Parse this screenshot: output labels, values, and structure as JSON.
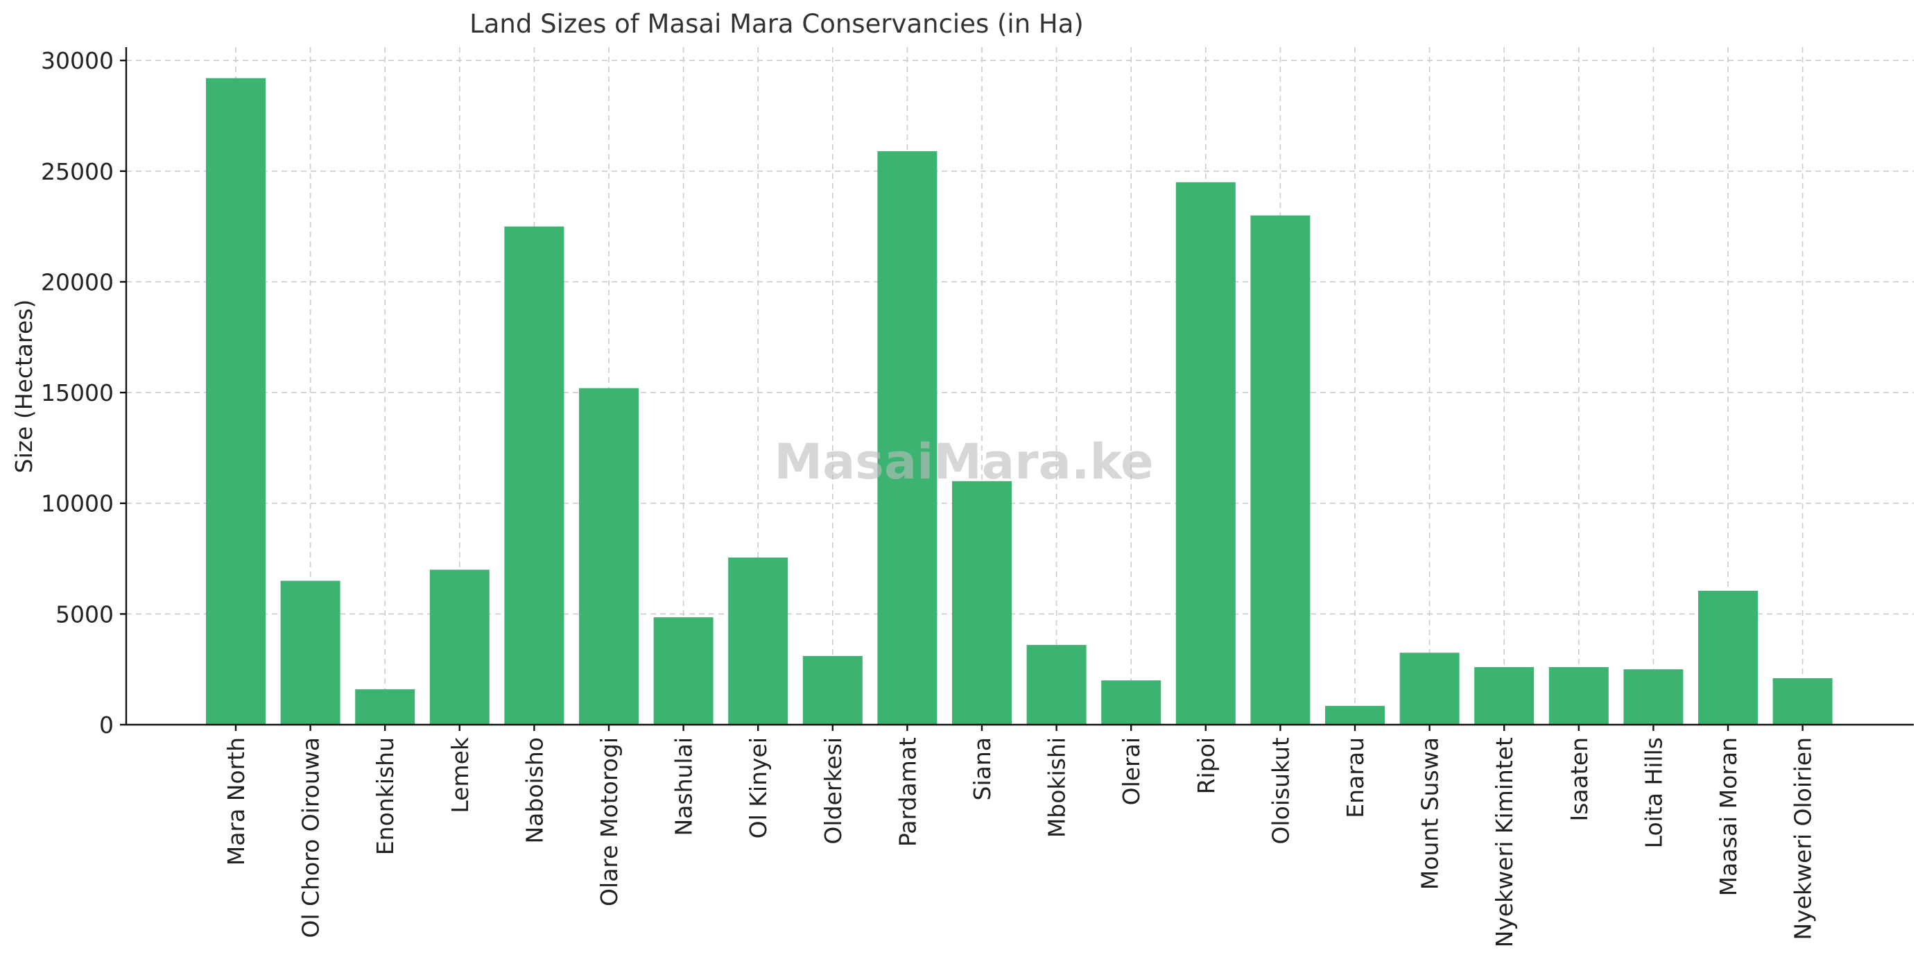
{
  "chart_data": {
    "type": "bar",
    "title": "Land Sizes of Masai Mara Conservancies (in Ha)",
    "xlabel": "",
    "ylabel": "Size (Hectares)",
    "ylim": [
      0,
      30600
    ],
    "yticks": [
      0,
      5000,
      10000,
      15000,
      20000,
      25000,
      30000
    ],
    "grid": true,
    "bar_color": "#3cb371",
    "categories": [
      "Mara North",
      "Ol Choro Oirouwa",
      "Enonkishu",
      "Lemek",
      "Naboisho",
      "Olare Motorogi",
      "Nashulai",
      "Ol Kinyei",
      "Olderkesi",
      "Pardamat",
      "Siana",
      "Mbokishi",
      "Olerai",
      "Ripoi",
      "Oloisukut",
      "Enarau",
      "Mount Suswa",
      "Nyekweri Kimintet",
      "Isaaten",
      "Loita Hills",
      "Maasai Moran",
      "Nyekweri Oloirien"
    ],
    "values": [
      29200,
      6500,
      1600,
      7000,
      22500,
      15200,
      4850,
      7550,
      3100,
      25900,
      11000,
      3600,
      2000,
      24500,
      23000,
      850,
      3250,
      2600,
      2600,
      2500,
      6050,
      2100
    ]
  },
  "watermark": "MasaiMara.ke"
}
